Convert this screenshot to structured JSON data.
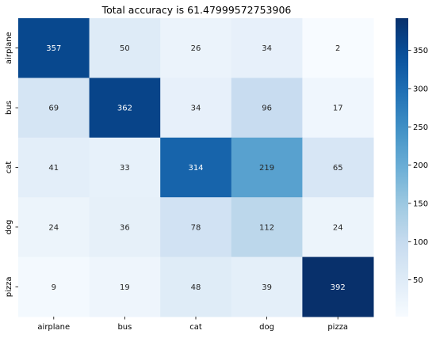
{
  "chart_data": {
    "type": "heatmap",
    "title": "Total accuracy is 61.47999572753906",
    "x_categories": [
      "airplane",
      "bus",
      "cat",
      "dog",
      "pizza"
    ],
    "y_categories": [
      "airplane",
      "bus",
      "cat",
      "dog",
      "pizza"
    ],
    "values": [
      [
        357,
        50,
        26,
        34,
        2
      ],
      [
        69,
        362,
        34,
        96,
        17
      ],
      [
        41,
        33,
        314,
        219,
        65
      ],
      [
        24,
        36,
        78,
        112,
        24
      ],
      [
        9,
        19,
        48,
        39,
        392
      ]
    ],
    "colormap": "Blues",
    "vmin": 2,
    "vmax": 392,
    "colorbar_ticks": [
      50,
      100,
      150,
      200,
      250,
      300,
      350
    ],
    "xlabel": "",
    "ylabel": ""
  }
}
